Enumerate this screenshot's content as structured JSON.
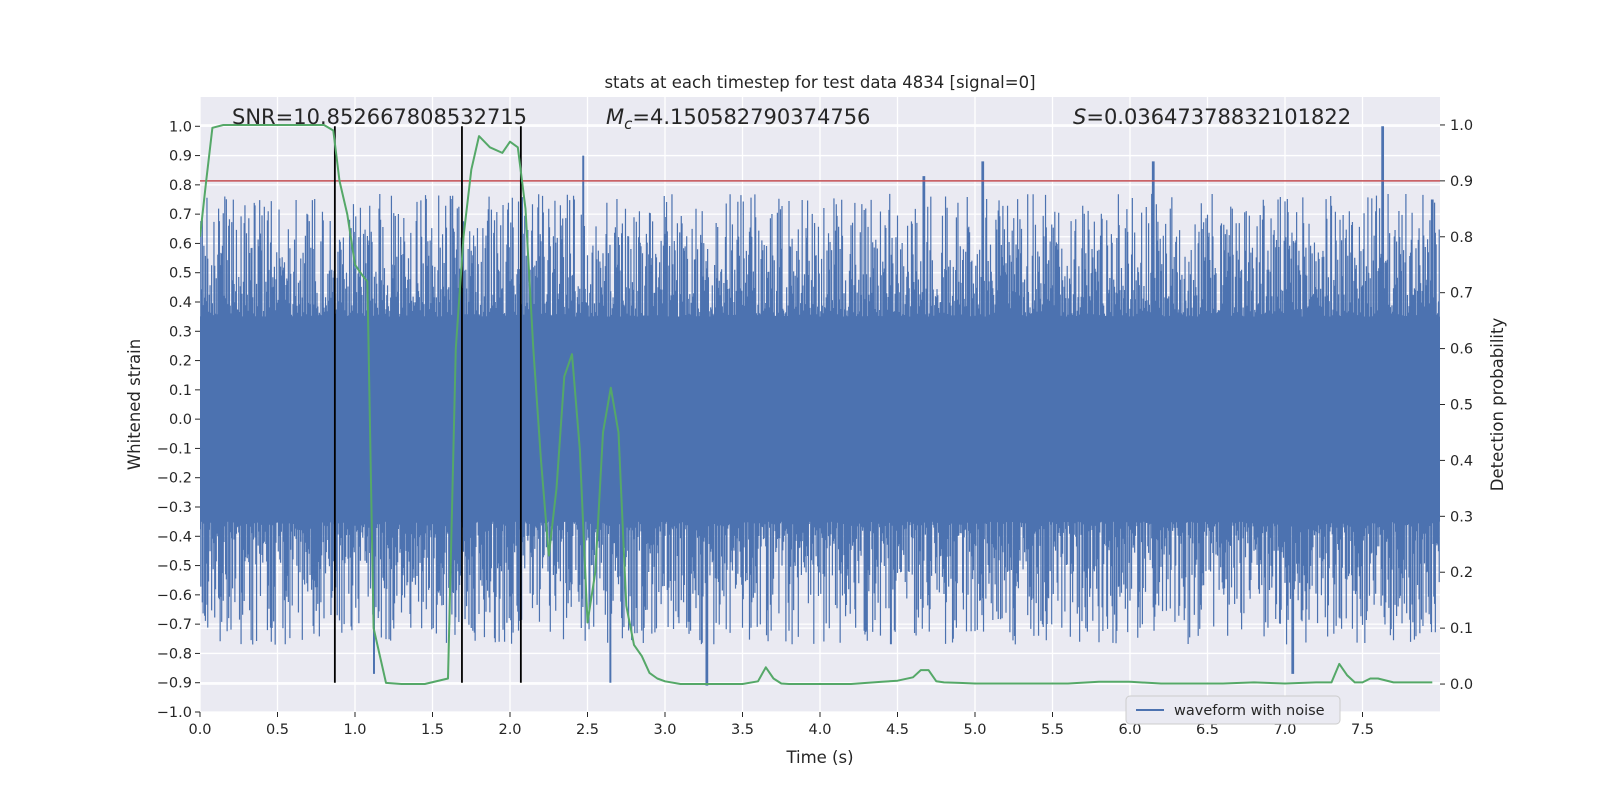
{
  "chart_data": {
    "type": "line",
    "title": "stats at each timestep for test data 4834 [signal=0]",
    "xlabel": "Time (s)",
    "ylabel": "Whitened strain",
    "y2label": "Detection probability",
    "xlim": [
      0.0,
      8.0
    ],
    "ylim": [
      -1.0,
      1.1
    ],
    "y2lim": [
      -0.05,
      1.05
    ],
    "xticks": [
      0.0,
      0.5,
      1.0,
      1.5,
      2.0,
      2.5,
      3.0,
      3.5,
      4.0,
      4.5,
      5.0,
      5.5,
      6.0,
      6.5,
      7.0,
      7.5
    ],
    "yticks": [
      -1.0,
      -0.9,
      -0.8,
      -0.7,
      -0.6,
      -0.5,
      -0.4,
      -0.3,
      -0.2,
      -0.1,
      0.0,
      0.1,
      0.2,
      0.3,
      0.4,
      0.5,
      0.6,
      0.7,
      0.8,
      0.9,
      1.0
    ],
    "y2ticks": [
      0.0,
      0.1,
      0.2,
      0.3,
      0.4,
      0.5,
      0.6,
      0.7,
      0.8,
      0.9,
      1.0
    ],
    "grid": true,
    "legend": {
      "position": "lower-right",
      "entries": [
        "waveform with noise"
      ]
    },
    "annotations": {
      "snr": "SNR=10.852667808532715",
      "mc_symbol": "M",
      "mc_sub": "c",
      "mc_value": "=4.150582790374756",
      "s_symbol": "S",
      "s_value": "=0.03647378832101822"
    },
    "threshold": {
      "axis": "y2",
      "value": 0.9
    },
    "vertical_lines": [
      0.87,
      1.69,
      2.07
    ],
    "waveform": {
      "name": "waveform with noise",
      "duration": 8.0,
      "samples": 1600,
      "dense_band": [
        -0.35,
        0.35
      ],
      "peaks_max": [
        [
          2.47,
          0.9
        ],
        [
          4.67,
          0.83
        ],
        [
          5.05,
          0.88
        ],
        [
          6.15,
          0.88
        ],
        [
          7.63,
          1.0
        ],
        [
          7.95,
          0.75
        ]
      ],
      "peaks_min": [
        [
          3.27,
          -0.91
        ],
        [
          2.65,
          -0.9
        ],
        [
          7.05,
          -0.87
        ],
        [
          1.12,
          -0.87
        ]
      ]
    },
    "detection_probability": {
      "x": [
        0.0,
        0.04,
        0.08,
        0.15,
        0.25,
        0.4,
        0.55,
        0.7,
        0.8,
        0.86,
        0.9,
        0.95,
        1.0,
        1.05,
        1.08,
        1.12,
        1.2,
        1.3,
        1.45,
        1.6,
        1.65,
        1.7,
        1.75,
        1.8,
        1.87,
        1.95,
        2.0,
        2.05,
        2.1,
        2.15,
        2.2,
        2.25,
        2.3,
        2.35,
        2.4,
        2.45,
        2.5,
        2.55,
        2.6,
        2.65,
        2.7,
        2.75,
        2.8,
        2.85,
        2.9,
        2.95,
        3.0,
        3.1,
        3.2,
        3.3,
        3.4,
        3.5,
        3.6,
        3.65,
        3.7,
        3.75,
        3.8,
        3.9,
        4.0,
        4.1,
        4.2,
        4.3,
        4.4,
        4.5,
        4.6,
        4.65,
        4.7,
        4.75,
        4.8,
        4.9,
        5.0,
        5.2,
        5.4,
        5.6,
        5.8,
        6.0,
        6.2,
        6.4,
        6.6,
        6.8,
        7.0,
        7.2,
        7.3,
        7.35,
        7.4,
        7.45,
        7.5,
        7.55,
        7.6,
        7.7,
        7.8,
        7.95
      ],
      "y": [
        0.8,
        0.9,
        0.995,
        1.0,
        1.0,
        1.0,
        1.0,
        1.0,
        1.0,
        0.99,
        0.9,
        0.84,
        0.75,
        0.73,
        0.72,
        0.1,
        0.002,
        0.0,
        0.0,
        0.01,
        0.6,
        0.8,
        0.92,
        0.98,
        0.96,
        0.95,
        0.97,
        0.96,
        0.85,
        0.6,
        0.4,
        0.23,
        0.35,
        0.55,
        0.59,
        0.42,
        0.11,
        0.2,
        0.45,
        0.53,
        0.45,
        0.14,
        0.07,
        0.05,
        0.02,
        0.01,
        0.005,
        0.0,
        0.0,
        0.0,
        0.0,
        0.0,
        0.005,
        0.03,
        0.01,
        0.001,
        0.0,
        0.0,
        0.0,
        0.0,
        0.0,
        0.002,
        0.004,
        0.006,
        0.012,
        0.025,
        0.025,
        0.005,
        0.003,
        0.002,
        0.001,
        0.001,
        0.001,
        0.001,
        0.004,
        0.004,
        0.001,
        0.001,
        0.001,
        0.003,
        0.001,
        0.003,
        0.003,
        0.036,
        0.016,
        0.003,
        0.003,
        0.01,
        0.01,
        0.003,
        0.003,
        0.003
      ]
    },
    "colors": {
      "background": "#eaeaf2",
      "grid": "#ffffff",
      "waveform": "#4c72b0",
      "probability": "#55a868",
      "threshold": "#c44e52",
      "vline": "#000000"
    }
  }
}
